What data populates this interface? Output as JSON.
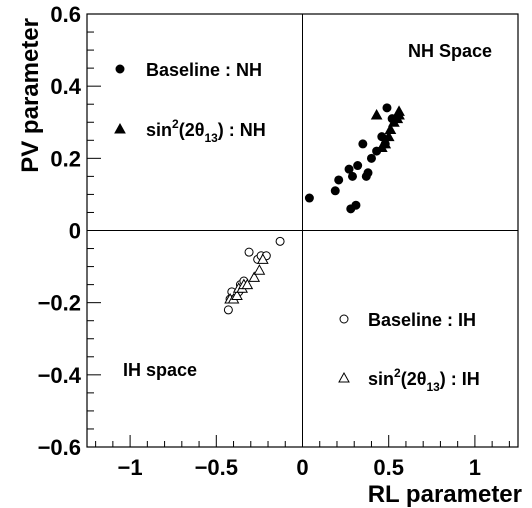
{
  "chart_data": {
    "type": "scatter",
    "title": "",
    "xlabel": "RL parameter",
    "ylabel": "PV parameter",
    "xlim": [
      -1.25,
      1.25
    ],
    "ylim": [
      -0.6,
      0.6
    ],
    "xticks": [
      -1,
      -0.5,
      0,
      0.5,
      1
    ],
    "xtick_labels": [
      "−1",
      "−0.5",
      "0",
      "0.5",
      "1"
    ],
    "yticks": [
      -0.6,
      -0.4,
      -0.2,
      0,
      0.2,
      0.4,
      0.6
    ],
    "ytick_labels": [
      "−0.6",
      "−0.4",
      "−0.2",
      "0",
      "0.2",
      "0.4",
      "0.6"
    ],
    "grid": false,
    "reference_lines": {
      "x": 0,
      "y": 0
    },
    "region_labels": {
      "top_right": "NH Space",
      "bottom_left": "IH space"
    },
    "legend_top_left": [
      {
        "marker": "filled-circle",
        "label": "Baseline : NH"
      },
      {
        "marker": "filled-triangle",
        "label_prefix": "sin",
        "label_sup": "2",
        "label_mid": "(2θ",
        "label_sub": "13",
        "label_suffix": ") : NH"
      }
    ],
    "legend_bottom_right": [
      {
        "marker": "open-circle",
        "label": "Baseline : IH"
      },
      {
        "marker": "open-triangle",
        "label_prefix": "sin",
        "label_sup": "2",
        "label_mid": "(2θ",
        "label_sub": "13",
        "label_suffix": ") : IH"
      }
    ],
    "series": [
      {
        "marker": "filled-circle",
        "points": [
          [
            0.04,
            0.09
          ],
          [
            0.19,
            0.11
          ],
          [
            0.21,
            0.14
          ],
          [
            0.27,
            0.17
          ],
          [
            0.29,
            0.15
          ],
          [
            0.32,
            0.18
          ],
          [
            0.35,
            0.24
          ],
          [
            0.38,
            0.16
          ],
          [
            0.4,
            0.2
          ],
          [
            0.43,
            0.22
          ],
          [
            0.46,
            0.26
          ],
          [
            0.48,
            0.24
          ],
          [
            0.49,
            0.34
          ],
          [
            0.52,
            0.31
          ],
          [
            0.28,
            0.06
          ],
          [
            0.31,
            0.07
          ],
          [
            0.37,
            0.15
          ]
        ]
      },
      {
        "marker": "filled-triangle",
        "points": [
          [
            0.43,
            0.32
          ],
          [
            0.46,
            0.23
          ],
          [
            0.48,
            0.24
          ],
          [
            0.5,
            0.26
          ],
          [
            0.51,
            0.28
          ],
          [
            0.53,
            0.3
          ],
          [
            0.55,
            0.31
          ],
          [
            0.56,
            0.33
          ],
          [
            0.56,
            0.32
          ]
        ]
      },
      {
        "marker": "open-circle",
        "points": [
          [
            -0.43,
            -0.22
          ],
          [
            -0.42,
            -0.19
          ],
          [
            -0.41,
            -0.19
          ],
          [
            -0.4,
            -0.18
          ],
          [
            -0.39,
            -0.18
          ],
          [
            -0.37,
            -0.17
          ],
          [
            -0.36,
            -0.15
          ],
          [
            -0.34,
            -0.14
          ],
          [
            -0.31,
            -0.06
          ],
          [
            -0.26,
            -0.08
          ],
          [
            -0.24,
            -0.07
          ],
          [
            -0.21,
            -0.07
          ],
          [
            -0.13,
            -0.03
          ],
          [
            -0.41,
            -0.17
          ]
        ]
      },
      {
        "marker": "open-triangle",
        "points": [
          [
            -0.42,
            -0.19
          ],
          [
            -0.4,
            -0.19
          ],
          [
            -0.38,
            -0.18
          ],
          [
            -0.37,
            -0.16
          ],
          [
            -0.35,
            -0.16
          ],
          [
            -0.34,
            -0.15
          ],
          [
            -0.32,
            -0.15
          ],
          [
            -0.28,
            -0.13
          ],
          [
            -0.25,
            -0.11
          ],
          [
            -0.23,
            -0.08
          ]
        ]
      }
    ]
  }
}
